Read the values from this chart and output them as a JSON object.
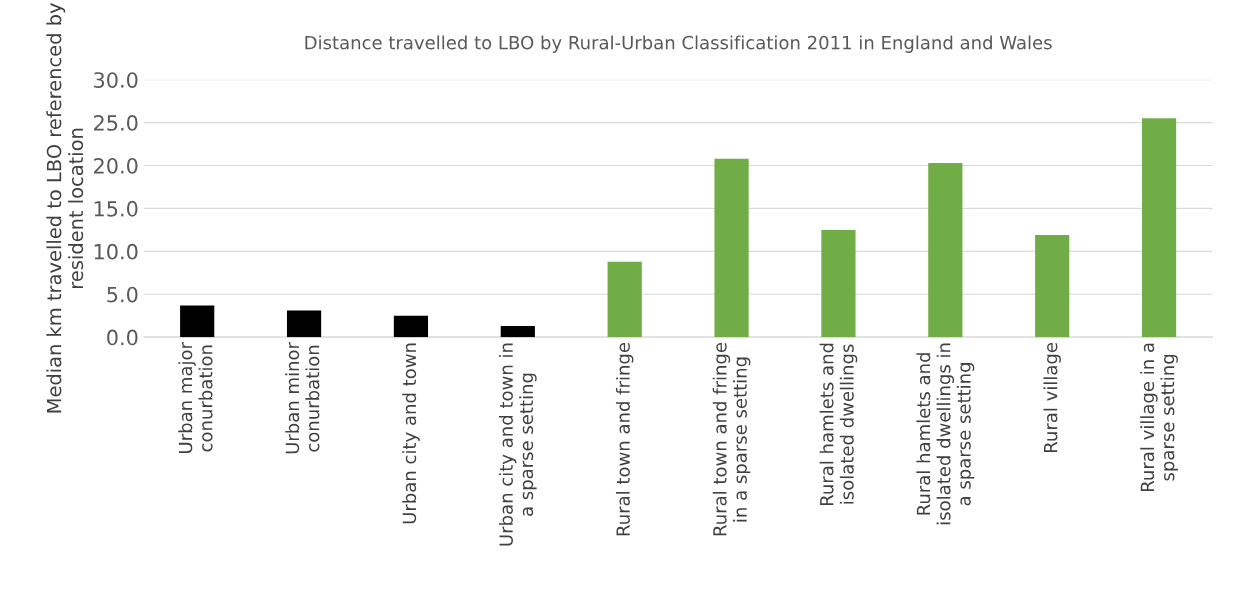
{
  "chart_data": {
    "type": "bar",
    "title": "Distance travelled to LBO by Rural-Urban Classification 2011 in England and Wales",
    "ylabel": "Median km travelled to LBO referenced by resident location",
    "categories": [
      "Urban major conurbation",
      "Urban minor conurbation",
      "Urban city and town",
      "Urban city and town in a sparse setting",
      "Rural town and fringe",
      "Rural town and fringe in a sparse setting",
      "Rural hamlets and isolated dwellings",
      "Rural hamlets and isolated dwellings in a sparse setting",
      "Rural village",
      "Rural village in a sparse setting"
    ],
    "values": [
      3.7,
      3.1,
      2.5,
      1.3,
      8.8,
      20.8,
      12.5,
      20.3,
      11.9,
      25.5
    ],
    "colors": [
      "#000000",
      "#000000",
      "#000000",
      "#000000",
      "#70ad47",
      "#70ad47",
      "#70ad47",
      "#70ad47",
      "#70ad47",
      "#70ad47"
    ],
    "ylim": [
      0,
      30
    ],
    "yticks": [
      {
        "value": 0,
        "label": "0.0"
      },
      {
        "value": 5,
        "label": "5.0"
      },
      {
        "value": 10,
        "label": "10.0"
      },
      {
        "value": 15,
        "label": "15.0"
      },
      {
        "value": 20,
        "label": "20.0"
      },
      {
        "value": 25,
        "label": "25.0"
      },
      {
        "value": 30,
        "label": "30.0"
      }
    ],
    "grid": "y"
  }
}
